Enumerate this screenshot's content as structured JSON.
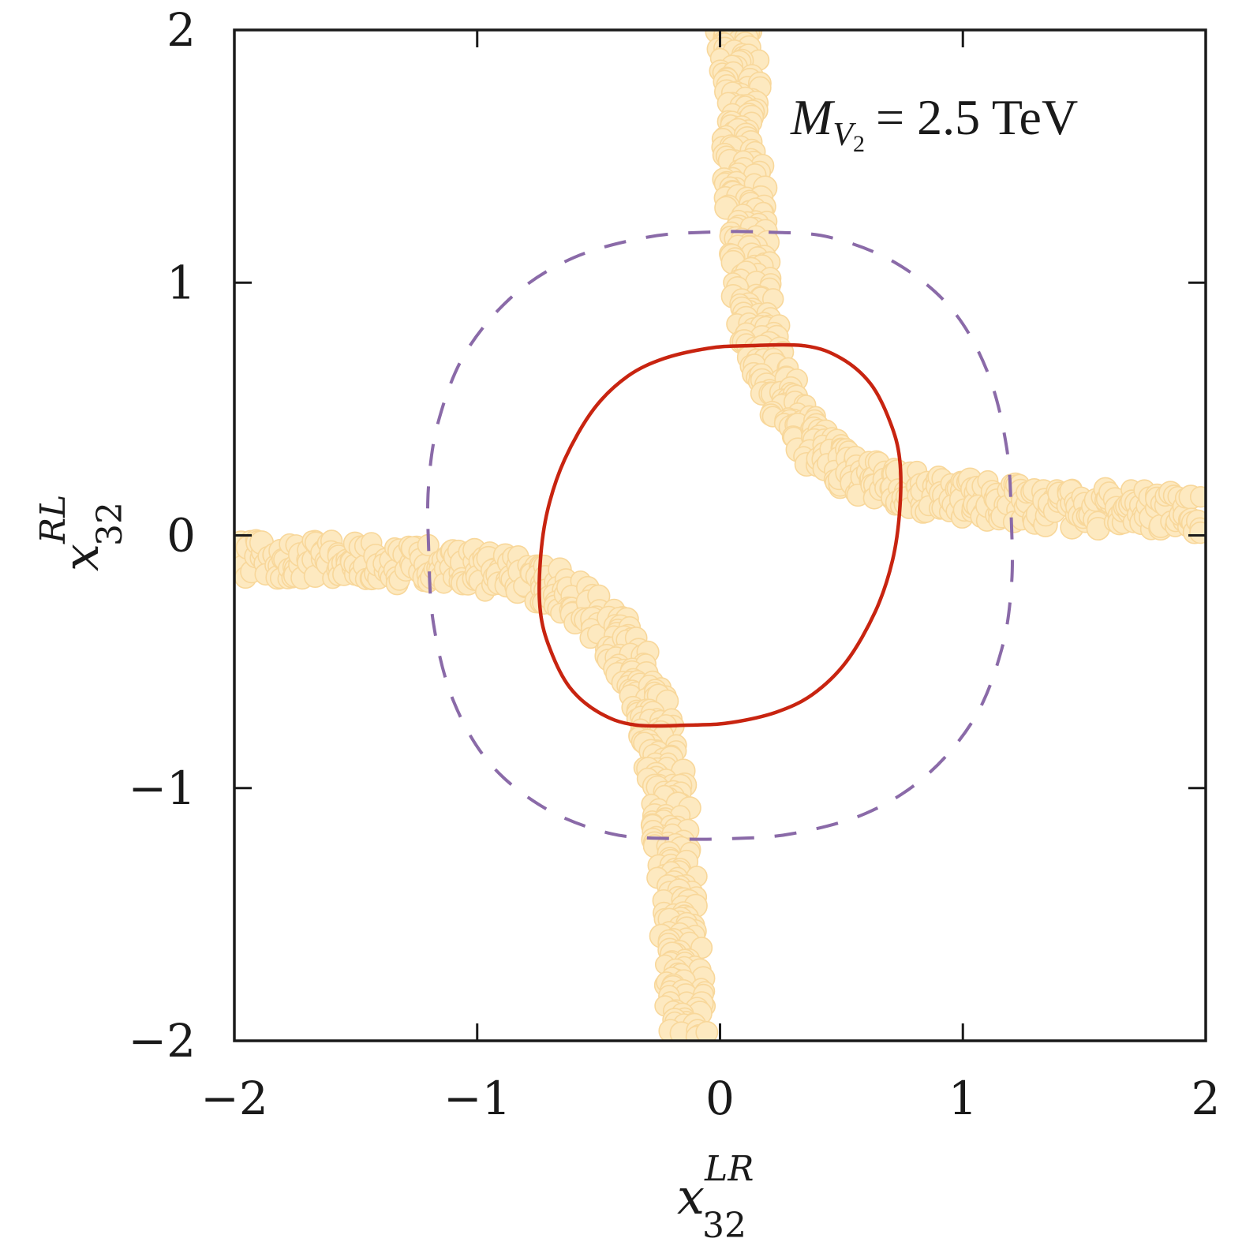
{
  "chart_data": {
    "type": "scatter",
    "xlabel": {
      "base": "x",
      "sub": "32",
      "sup": "LR"
    },
    "ylabel": {
      "base": "x",
      "sub": "32",
      "sup": "RL"
    },
    "xlim": [
      -2,
      2
    ],
    "ylim": [
      -2,
      2
    ],
    "xticks": [
      -2,
      -1,
      0,
      1,
      2
    ],
    "yticks": [
      -2,
      -1,
      0,
      1,
      2
    ],
    "xtick_labels": [
      "−2",
      "−1",
      "0",
      "1",
      "2"
    ],
    "ytick_labels": [
      "−2",
      "−1",
      "0",
      "1",
      "2"
    ],
    "grid": false,
    "annotation": {
      "mass_symbol": "M",
      "mass_sub_base": "V",
      "mass_sub_index": "2",
      "value_text": "= 2.5 TeV"
    },
    "series": [
      {
        "kind": "scatter-band",
        "color": "#fde9c0",
        "edge_color": "#f8d79a",
        "branches": [
          {
            "x": [
              0.07,
              0.08,
              0.09,
              0.1,
              0.11,
              0.12,
              0.13,
              0.15,
              0.18,
              0.22,
              0.26,
              0.3,
              0.35,
              0.42,
              0.5,
              0.6,
              0.72,
              0.85,
              1.0,
              1.15,
              1.3,
              1.5,
              1.7,
              1.9,
              2.0
            ],
            "y": [
              2.0,
              1.8,
              1.6,
              1.4,
              1.25,
              1.1,
              0.98,
              0.86,
              0.74,
              0.63,
              0.54,
              0.46,
              0.39,
              0.32,
              0.27,
              0.23,
              0.19,
              0.165,
              0.145,
              0.13,
              0.12,
              0.11,
              0.1,
              0.095,
              0.09
            ]
          },
          {
            "x": [
              -2.0,
              -1.8,
              -1.6,
              -1.4,
              -1.2,
              -1.05,
              -0.9,
              -0.8,
              -0.7,
              -0.6,
              -0.52,
              -0.45,
              -0.38,
              -0.33,
              -0.29,
              -0.26,
              -0.24,
              -0.22,
              -0.2,
              -0.18,
              -0.17,
              -0.16,
              -0.15,
              -0.14,
              -0.13
            ],
            "y": [
              -0.09,
              -0.095,
              -0.1,
              -0.11,
              -0.12,
              -0.13,
              -0.15,
              -0.17,
              -0.2,
              -0.25,
              -0.31,
              -0.38,
              -0.46,
              -0.55,
              -0.65,
              -0.76,
              -0.88,
              -1.0,
              -1.15,
              -1.3,
              -1.45,
              -1.6,
              -1.75,
              -1.9,
              -2.0
            ]
          }
        ]
      },
      {
        "kind": "contour",
        "style": "solid",
        "color": "#c82410",
        "x": [
          0.35,
          0.5,
          0.62,
          0.7,
          0.74,
          0.74,
          0.71,
          0.64,
          0.52,
          0.38,
          0.23,
          0.05,
          -0.1,
          -0.35,
          -0.5,
          -0.62,
          -0.7,
          -0.74,
          -0.74,
          -0.71,
          -0.64,
          -0.52,
          -0.38,
          -0.23,
          -0.05,
          0.1,
          0.35
        ],
        "y": [
          0.75,
          0.7,
          0.6,
          0.45,
          0.3,
          0.1,
          -0.1,
          -0.3,
          -0.5,
          -0.63,
          -0.7,
          -0.74,
          -0.75,
          -0.75,
          -0.7,
          -0.6,
          -0.45,
          -0.3,
          -0.1,
          0.1,
          0.3,
          0.5,
          0.63,
          0.7,
          0.74,
          0.75,
          0.75
        ]
      },
      {
        "kind": "contour",
        "style": "dashed",
        "color": "#8a6aa8",
        "x": [
          0.2,
          0.45,
          0.72,
          0.95,
          1.1,
          1.18,
          1.2,
          1.2,
          1.16,
          1.05,
          0.85,
          0.6,
          0.3,
          0.05,
          -0.2,
          -0.45,
          -0.72,
          -0.95,
          -1.1,
          -1.18,
          -1.2,
          -1.2,
          -1.16,
          -1.05,
          -0.85,
          -0.6,
          -0.3,
          -0.05,
          0.2
        ],
        "y": [
          1.2,
          1.18,
          1.08,
          0.9,
          0.65,
          0.35,
          0.05,
          -0.2,
          -0.45,
          -0.72,
          -0.95,
          -1.1,
          -1.18,
          -1.2,
          -1.2,
          -1.18,
          -1.08,
          -0.9,
          -0.65,
          -0.35,
          -0.05,
          0.2,
          0.45,
          0.72,
          0.95,
          1.1,
          1.18,
          1.2,
          1.2
        ]
      }
    ]
  }
}
